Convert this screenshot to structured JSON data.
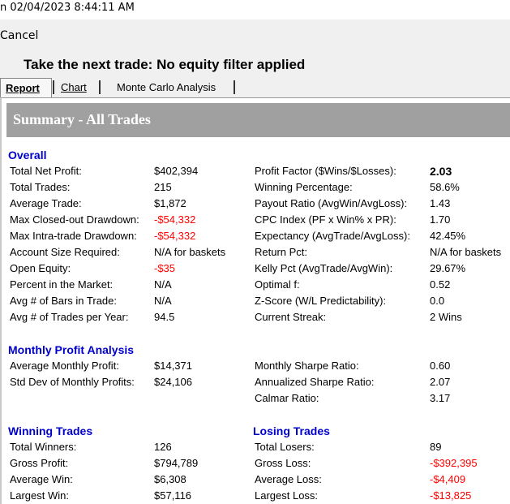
{
  "titlebar": {
    "text": "n 02/04/2023 8:44:11 AM"
  },
  "menubar": {
    "cancel_label": "Cancel"
  },
  "window": {
    "heading": "Take the next trade: No equity filter applied"
  },
  "tabs": [
    {
      "label": "Report",
      "selected": true
    },
    {
      "label": "Chart",
      "selected": false
    },
    {
      "label": "Monte Carlo Analysis",
      "selected": false
    }
  ],
  "report": {
    "summary_title": "Summary - All Trades",
    "overall": {
      "title": "Overall",
      "left": [
        {
          "label": "Total Net Profit:",
          "value": "$402,394",
          "negative": false
        },
        {
          "label": "Total Trades:",
          "value": "215",
          "negative": false
        },
        {
          "label": "Average Trade:",
          "value": "$1,872",
          "negative": false
        },
        {
          "label": "Max Closed-out Drawdown:",
          "value": "-$54,332",
          "negative": true
        },
        {
          "label": "Max Intra-trade Drawdown:",
          "value": "-$54,332",
          "negative": true
        },
        {
          "label": "Account Size Required:",
          "value": "N/A for baskets",
          "negative": false
        },
        {
          "label": "Open Equity:",
          "value": "-$35",
          "negative": true
        },
        {
          "label": "Percent in the Market:",
          "value": "N/A",
          "negative": false
        },
        {
          "label": "Avg # of Bars in Trade:",
          "value": "N/A",
          "negative": false
        },
        {
          "label": "Avg # of Trades per Year:",
          "value": "94.5",
          "negative": false
        }
      ],
      "right": [
        {
          "label": "Profit Factor ($Wins/$Losses):",
          "value": "2.03",
          "bold": true
        },
        {
          "label": "Winning Percentage:",
          "value": "58.6%"
        },
        {
          "label": "Payout Ratio (AvgWin/AvgLoss):",
          "value": "1.43"
        },
        {
          "label": "CPC Index (PF x Win% x PR):",
          "value": "1.70"
        },
        {
          "label": "Expectancy (AvgTrade/AvgLoss):",
          "value": "42.45%"
        },
        {
          "label": "Return Pct:",
          "value": "N/A for baskets"
        },
        {
          "label": "Kelly Pct (AvgTrade/AvgWin):",
          "value": "29.67%"
        },
        {
          "label": "Optimal f:",
          "value": "0.52"
        },
        {
          "label": "Z-Score (W/L Predictability):",
          "value": "0.0"
        },
        {
          "label": "Current Streak:",
          "value": "2 Wins"
        }
      ]
    },
    "monthly": {
      "title": "Monthly Profit Analysis",
      "left": [
        {
          "label": "Average Monthly Profit:",
          "value": "$14,371"
        },
        {
          "label": "Std Dev of Monthly Profits:",
          "value": "$24,106"
        }
      ],
      "right": [
        {
          "label": "Monthly Sharpe Ratio:",
          "value": "0.60"
        },
        {
          "label": "Annualized Sharpe Ratio:",
          "value": "2.07"
        },
        {
          "label": "Calmar Ratio:",
          "value": "3.17"
        }
      ]
    },
    "winning": {
      "title": "Winning Trades",
      "rows": [
        {
          "label": "Total Winners:",
          "value": "126"
        },
        {
          "label": "Gross Profit:",
          "value": "$794,789"
        },
        {
          "label": "Average Win:",
          "value": "$6,308"
        },
        {
          "label": "Largest Win:",
          "value": "$57,116"
        }
      ]
    },
    "losing": {
      "title": "Losing Trades",
      "rows": [
        {
          "label": "Total Losers:",
          "value": "89",
          "negative": false
        },
        {
          "label": "Gross Loss:",
          "value": "-$392,395",
          "negative": true
        },
        {
          "label": "Average Loss:",
          "value": "-$4,409",
          "negative": true
        },
        {
          "label": "Largest Loss:",
          "value": "-$13,825",
          "negative": true
        }
      ]
    }
  }
}
